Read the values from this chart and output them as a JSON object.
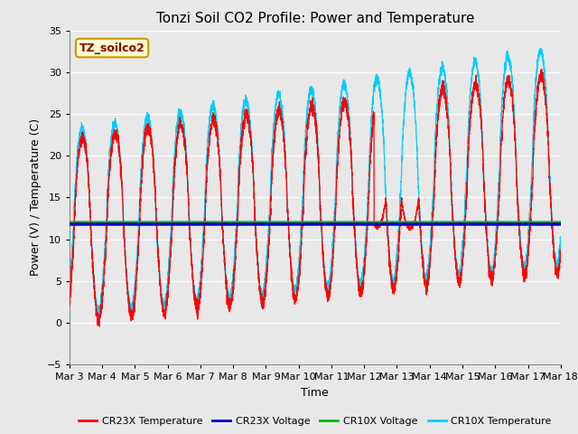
{
  "title": "Tonzi Soil CO2 Profile: Power and Temperature",
  "xlabel": "Time",
  "ylabel": "Power (V) / Temperature (C)",
  "ylim": [
    -5,
    35
  ],
  "yticks": [
    -5,
    0,
    5,
    10,
    15,
    20,
    25,
    30,
    35
  ],
  "xlim": [
    0,
    15
  ],
  "xtick_labels": [
    "Mar 3",
    "Mar 4",
    "Mar 5",
    "Mar 6",
    "Mar 7",
    "Mar 8",
    "Mar 9",
    "Mar 10",
    "Mar 11",
    "Mar 12",
    "Mar 13",
    "Mar 14",
    "Mar 15",
    "Mar 16",
    "Mar 17",
    "Mar 18"
  ],
  "cr23x_voltage_value": 11.8,
  "cr10x_voltage_value": 12.0,
  "annotation_text": "TZ_soilco2",
  "annotation_color": "#8B0000",
  "annotation_bg": "#ffffcc",
  "annotation_edge": "#cc9900",
  "plot_bg": "#e8e8e8",
  "fig_bg": "#e8e8e8",
  "cr23x_temp_color": "#ff0000",
  "cr23x_volt_color": "#0000cc",
  "cr10x_volt_color": "#00bb00",
  "cr10x_temp_color": "#00ccff",
  "legend_labels": [
    "CR23X Temperature",
    "CR23X Voltage",
    "CR10X Voltage",
    "CR10X Temperature"
  ],
  "title_fontsize": 11,
  "axis_label_fontsize": 9,
  "tick_fontsize": 8,
  "legend_fontsize": 8
}
